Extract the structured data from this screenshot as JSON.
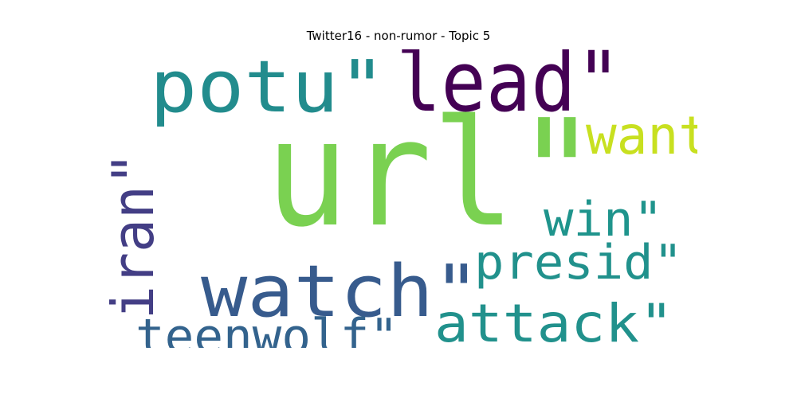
{
  "title": "Twitter16 - non-rumor - Topic 5",
  "words": [
    {
      "key": "url",
      "text": "url\"",
      "color": "#7ad151"
    },
    {
      "key": "lead",
      "text": "lead\"",
      "color": "#440154"
    },
    {
      "key": "potu",
      "text": "potu\"",
      "color": "#228c8d"
    },
    {
      "key": "want",
      "text": "want",
      "color": "#c8e020"
    },
    {
      "key": "iran",
      "text": "iran\"",
      "color": "#433e85"
    },
    {
      "key": "win",
      "text": "win\"",
      "color": "#1f948c"
    },
    {
      "key": "watch",
      "text": "watch\"",
      "color": "#375b8d"
    },
    {
      "key": "presid",
      "text": "presid\"",
      "color": "#21918c"
    },
    {
      "key": "attack",
      "text": "attack\"",
      "color": "#21918c"
    },
    {
      "key": "teenwolf",
      "text": "teenwolf\"",
      "color": "#33638d"
    }
  ]
}
